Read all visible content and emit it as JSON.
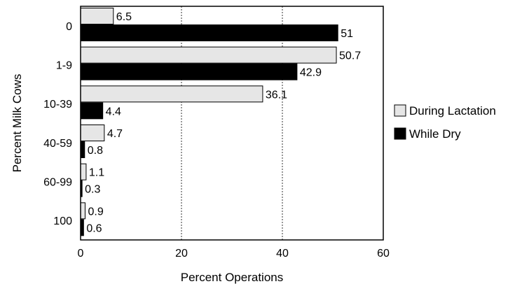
{
  "chart_data": {
    "type": "bar",
    "orientation": "horizontal",
    "title": "",
    "xlabel": "Percent Operations",
    "ylabel": "Percent Milk Cows",
    "categories": [
      "0",
      "1-9",
      "10-39",
      "40-59",
      "60-99",
      "100"
    ],
    "series": [
      {
        "name": "During Lactation",
        "values": [
          6.5,
          50.7,
          36.1,
          4.7,
          1.1,
          0.9
        ],
        "color": "#e6e6e6"
      },
      {
        "name": "While Dry",
        "values": [
          51,
          42.9,
          4.4,
          0.8,
          0.3,
          0.6
        ],
        "color": "#000000"
      }
    ],
    "xlim": [
      0,
      60
    ],
    "xticks": [
      0,
      20,
      40,
      60
    ],
    "grid": "vertical dotted",
    "legend_position": "right"
  }
}
